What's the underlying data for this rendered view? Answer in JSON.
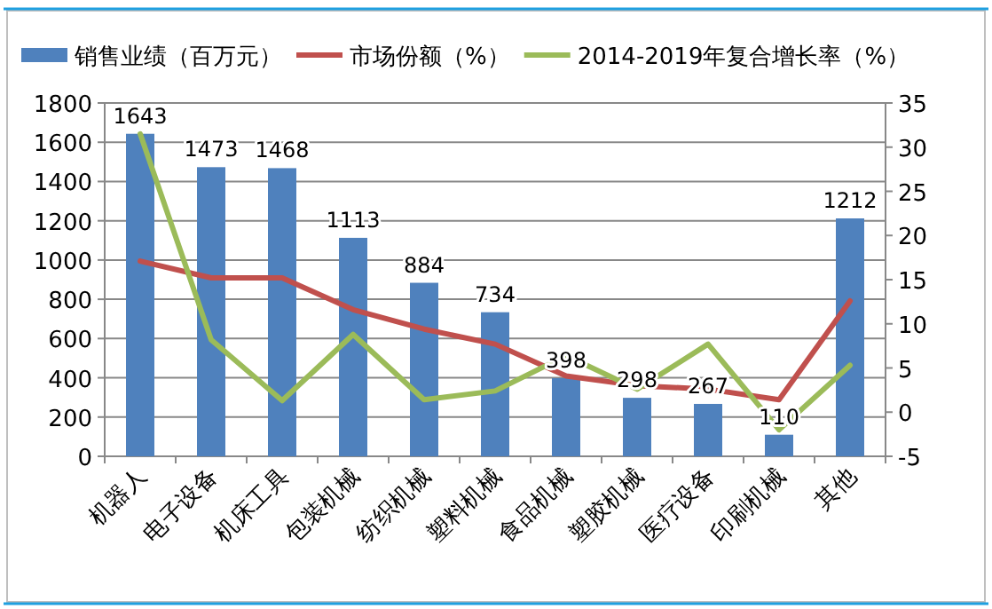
{
  "chart_data": {
    "type": "bar",
    "categories": [
      "机器人",
      "电子设备",
      "机床工具",
      "包装机械",
      "纺织机械",
      "塑料机械",
      "食品机械",
      "塑胶机械",
      "医疗设备",
      "印刷机械",
      "其他"
    ],
    "series": [
      {
        "name": "销售业绩（百万元）",
        "color": "#4f81bd",
        "values": [
          1643,
          1473,
          1468,
          1113,
          884,
          734,
          398,
          298,
          267,
          110,
          1212
        ],
        "value_labels": [
          "1643",
          "1473",
          "1468",
          "1113",
          "884",
          "734",
          "398",
          "298",
          "267",
          "110",
          "1212"
        ]
      },
      {
        "name": "市场份额（%）",
        "type": "line",
        "axis": "y2",
        "color": "#c0504d",
        "values": [
          17.1,
          15.2,
          15.2,
          11.6,
          9.4,
          7.7,
          4.1,
          3.0,
          2.6,
          1.4,
          12.6
        ]
      },
      {
        "name": "2014-2019年复合增长率（%）",
        "type": "line",
        "axis": "y2",
        "color": "#9bbb59",
        "values": [
          31.5,
          8.2,
          1.3,
          8.8,
          1.4,
          2.4,
          6.4,
          2.6,
          7.7,
          -2.0,
          5.3
        ]
      }
    ],
    "ylim": [
      0,
      1800
    ],
    "yticks": [
      0,
      200,
      400,
      600,
      800,
      1000,
      1200,
      1400,
      1600,
      1800
    ],
    "y2lim": [
      -5,
      35
    ],
    "y2ticks": [
      -5,
      0,
      5,
      10,
      15,
      20,
      25,
      30,
      35
    ],
    "grid": "y",
    "legend": "top",
    "marker": "none"
  }
}
